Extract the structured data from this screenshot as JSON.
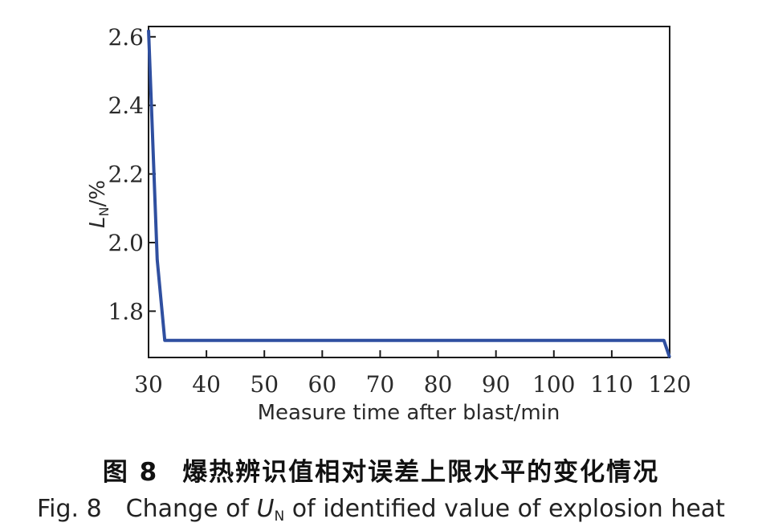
{
  "chart_data": {
    "type": "line",
    "xlabel": "Measure time after blast/min",
    "ylabel_main": "L",
    "ylabel_sub": "N",
    "ylabel_unit": "/%",
    "xlim": [
      30,
      120
    ],
    "ylim": [
      1.665,
      2.63
    ],
    "x_ticks": [
      30,
      40,
      50,
      60,
      70,
      80,
      90,
      100,
      110,
      120
    ],
    "y_ticks": [
      1.8,
      2.0,
      2.2,
      2.4,
      2.6
    ],
    "x_tick_labels": [
      "30",
      "40",
      "50",
      "60",
      "70",
      "80",
      "90",
      "100",
      "110",
      "120"
    ],
    "y_tick_labels": [
      "1.8",
      "2.0",
      "2.2",
      "2.4",
      "2.6"
    ],
    "grid": false,
    "line_color": "#2f4fa0",
    "series": [
      {
        "x": [
          30,
          31.5,
          32.8,
          119,
          120
        ],
        "y": [
          2.62,
          1.95,
          1.715,
          1.715,
          1.665
        ]
      }
    ]
  },
  "caption": {
    "zh_label": "图 8",
    "zh_title": "爆热辨识值相对误差上限水平的变化情况",
    "en_label": "Fig. 8",
    "en_text_before": "Change of",
    "en_var": "U",
    "en_var_sub": "N",
    "en_text_after": "of identified value of explosion heat"
  }
}
